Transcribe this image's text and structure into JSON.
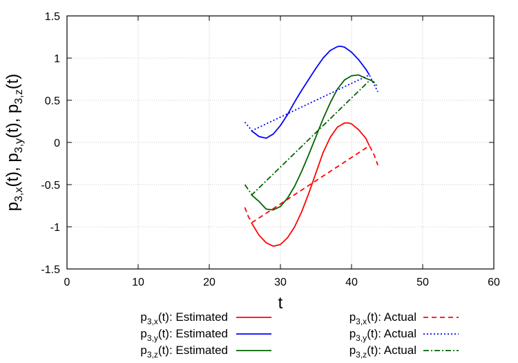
{
  "chart_data": {
    "type": "line",
    "xlabel": "t",
    "ylabel": {
      "parts": [
        {
          "base": "p",
          "sub": "3,x",
          "rest": "(t), "
        },
        {
          "base": "p",
          "sub": "3,y",
          "rest": "(t), "
        },
        {
          "base": "p",
          "sub": "3,z",
          "rest": "(t)"
        }
      ]
    },
    "xlim": [
      0,
      60
    ],
    "ylim": [
      -1.5,
      1.5
    ],
    "x_ticks": [
      "0",
      "10",
      "20",
      "30",
      "40",
      "50",
      "60"
    ],
    "y_ticks": [
      "-1.5",
      "-1",
      "-0.5",
      "0",
      "0.5",
      "1",
      "1.5"
    ],
    "grid": true,
    "legend_position": "bottom",
    "series": [
      {
        "name": "p3,x(t): Estimated",
        "label_base": "p",
        "label_sub": "3,x",
        "label_rest": "(t): Estimated",
        "color": "#ff0000",
        "style": "solid",
        "x": [
          25.9,
          27,
          28,
          29,
          30,
          31,
          32,
          33,
          34,
          35,
          36,
          37,
          38,
          39,
          39.6,
          40,
          41,
          42,
          42.5
        ],
        "y": [
          -0.95,
          -1.1,
          -1.19,
          -1.23,
          -1.21,
          -1.13,
          -1.0,
          -0.82,
          -0.6,
          -0.36,
          -0.12,
          0.06,
          0.18,
          0.23,
          0.23,
          0.22,
          0.15,
          0.05,
          -0.04
        ]
      },
      {
        "name": "p3,y(t): Estimated",
        "label_base": "p",
        "label_sub": "3,y",
        "label_rest": "(t): Estimated",
        "color": "#0000ff",
        "style": "solid",
        "x": [
          25.9,
          27,
          28,
          29,
          30,
          31,
          32,
          33,
          34,
          35,
          36,
          37,
          38,
          38.4,
          39,
          40,
          41,
          42,
          42.5
        ],
        "y": [
          0.14,
          0.07,
          0.05,
          0.1,
          0.2,
          0.33,
          0.48,
          0.62,
          0.75,
          0.88,
          1.0,
          1.09,
          1.135,
          1.14,
          1.13,
          1.07,
          0.98,
          0.87,
          0.8
        ]
      },
      {
        "name": "p3,z(t): Estimated",
        "label_base": "p",
        "label_sub": "3,z",
        "label_rest": "(t): Estimated",
        "color": "#006400",
        "style": "solid",
        "x": [
          25.9,
          27,
          28,
          29,
          30,
          31,
          32,
          33,
          34,
          35,
          36,
          37,
          38,
          39,
          40,
          41,
          42,
          42.6
        ],
        "y": [
          -0.62,
          -0.7,
          -0.79,
          -0.8,
          -0.76,
          -0.66,
          -0.52,
          -0.34,
          -0.14,
          0.07,
          0.28,
          0.47,
          0.63,
          0.74,
          0.79,
          0.8,
          0.76,
          0.74
        ]
      },
      {
        "name": "p3,x(t): Actual",
        "label_base": "p",
        "label_sub": "3,x",
        "label_rest": "(t): Actual",
        "color": "#ff0000",
        "style": "dashed",
        "x": [
          25,
          25.5,
          26,
          42.5,
          43.1,
          43.7
        ],
        "y": [
          -0.77,
          -0.88,
          -0.95,
          -0.04,
          -0.13,
          -0.27
        ]
      },
      {
        "name": "p3,y(t): Actual",
        "label_base": "p",
        "label_sub": "3,y",
        "label_rest": "(t): Actual",
        "color": "#0000ff",
        "style": "dotted",
        "x": [
          25,
          25.5,
          26,
          42.5,
          43.1,
          43.7
        ],
        "y": [
          0.24,
          0.19,
          0.14,
          0.8,
          0.7,
          0.6
        ]
      },
      {
        "name": "p3,z(t): Actual",
        "label_base": "p",
        "label_sub": "3,z",
        "label_rest": "(t): Actual",
        "color": "#006400",
        "style": "dashdot",
        "x": [
          25,
          25.5,
          26,
          42.6,
          43.1,
          43.7
        ],
        "y": [
          -0.5,
          -0.56,
          -0.62,
          0.74,
          0.72,
          0.66
        ]
      }
    ]
  }
}
